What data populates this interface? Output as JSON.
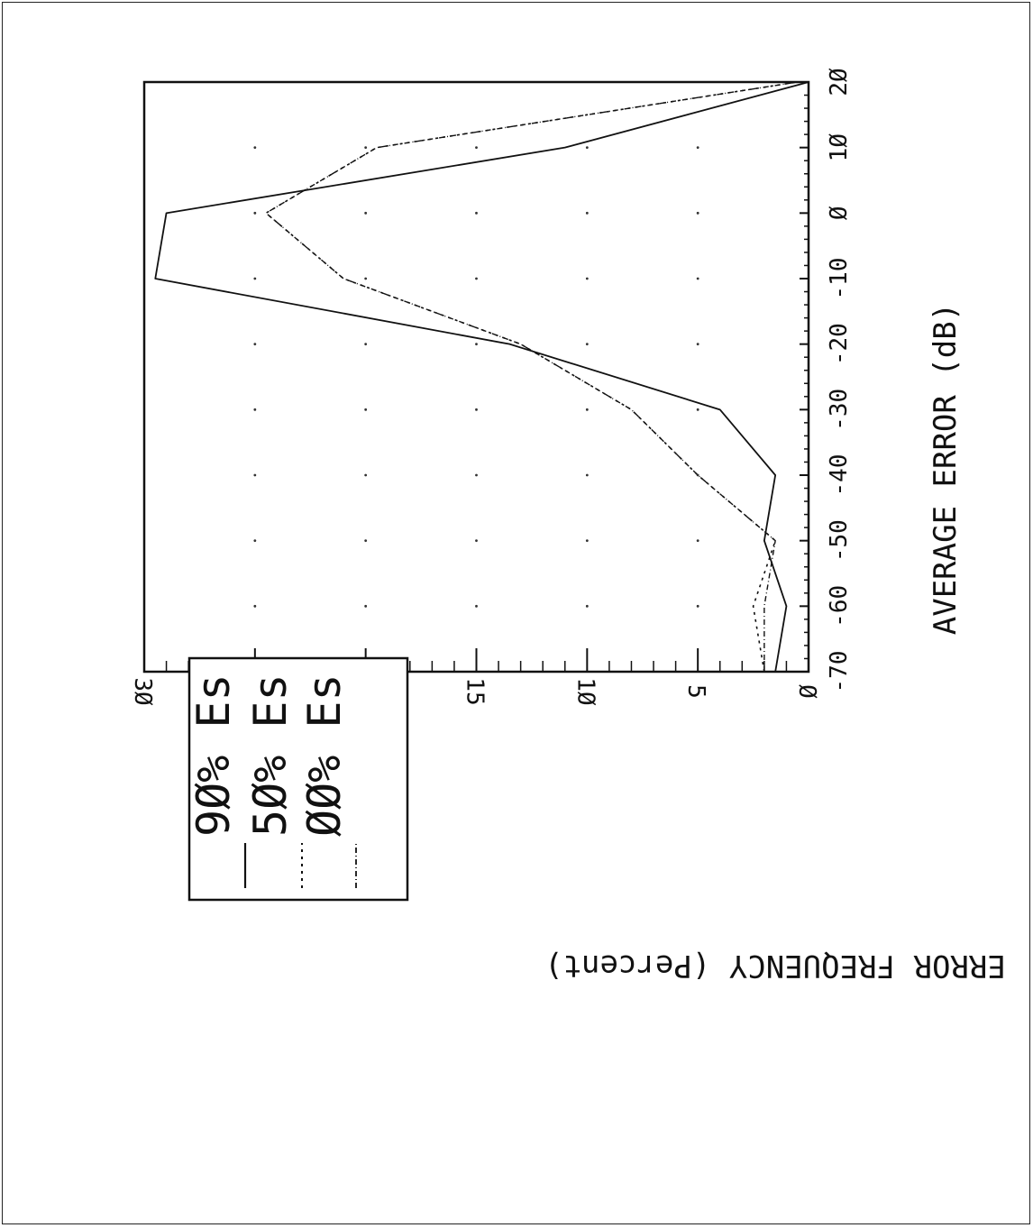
{
  "chart_data": {
    "type": "line",
    "orientation": "rotated-90-cw",
    "xlabel": "AVERAGE ERROR (dB)",
    "ylabel": "ERROR FREQUENCY (Percent)",
    "xlim": [
      -70,
      20
    ],
    "ylim": [
      0,
      30
    ],
    "x_ticks": [
      -70,
      -60,
      -50,
      -40,
      -30,
      -20,
      -10,
      0,
      10,
      20
    ],
    "x_tick_labels": [
      "-70",
      "-60",
      "-50",
      "-40",
      "-30",
      "-20",
      "-10",
      "Ø",
      "1Ø",
      "2Ø"
    ],
    "y_ticks": [
      0,
      5,
      10,
      15,
      20,
      25,
      30
    ],
    "y_tick_labels": [
      "Ø",
      "5",
      "1Ø",
      "15",
      "2Ø",
      "25",
      "3Ø"
    ],
    "grid": "dotted-points",
    "legend_position": "top-left",
    "series": [
      {
        "name": "9Ø% Es",
        "style": "solid",
        "x": [
          -70,
          -60,
          -50,
          -40,
          -30,
          -20,
          -10,
          0,
          10,
          20
        ],
        "values": [
          1.5,
          1.0,
          2.0,
          1.5,
          4.0,
          13.5,
          29.5,
          29.0,
          11.0,
          0.0
        ]
      },
      {
        "name": "5Ø% Es",
        "style": "dashed",
        "x": [
          -70,
          -60,
          -50,
          -40,
          -30,
          -20,
          -10,
          0,
          10,
          20
        ],
        "values": [
          2.0,
          2.5,
          1.5,
          5.0,
          8.0,
          13.0,
          21.0,
          24.5,
          19.5,
          0.5
        ]
      },
      {
        "name": "ØØ% Es",
        "style": "dash-dot",
        "x": [
          -70,
          -60,
          -50,
          -40,
          -30,
          -20,
          -10,
          0,
          10,
          20
        ],
        "values": [
          2.0,
          2.0,
          1.5,
          5.0,
          8.0,
          13.0,
          21.0,
          24.5,
          19.5,
          0.5
        ]
      }
    ]
  }
}
